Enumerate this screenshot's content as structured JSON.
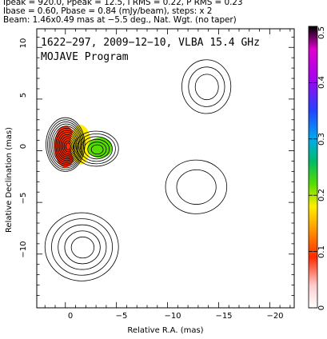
{
  "header": {
    "line1": "Ipeak = 920.0, Ppeak = 12.5, I RMS = 0.22, P RMS = 0.23",
    "line2": "Ibase = 0.60, Pbase = 0.84 (mJy/beam), steps: x 2",
    "line3": "Beam: 1.46x0.49 mas at −5.5 deg., Nat. Wgt. (no taper)"
  },
  "plot": {
    "caption1": "1622−297, 2009−12−10, VLBA 15.4 GHz",
    "caption2": "MOJAVE Program"
  },
  "chart_data": {
    "type": "heatmap",
    "xlabel": "Relative R.A. (mas)",
    "ylabel": "Relative Declination (mas)",
    "xlim": [
      2.8,
      -22.4
    ],
    "ylim": [
      -15.2,
      11.8
    ],
    "x_ticks": [
      0,
      -5,
      -10,
      -15,
      -20
    ],
    "x_tick_labels": [
      "0",
      "−5",
      "−10",
      "−15",
      "−20"
    ],
    "y_ticks": [
      10,
      5,
      0,
      -5,
      -10
    ],
    "y_tick_labels": [
      "10",
      "5",
      "0",
      "−5",
      "−10"
    ],
    "colorbar": {
      "range": [
        0,
        0.5
      ],
      "ticks": [
        0,
        0.1,
        0.2,
        0.3,
        0.4,
        0.5
      ],
      "tick_labels": [
        "0",
        "0.1",
        "0.2",
        "0.3",
        "0.4",
        "0.5"
      ]
    },
    "contour_components": [
      {
        "x": 0.0,
        "y": 0.6,
        "rx": 1.9,
        "ry": 2.6,
        "rings": 13
      },
      {
        "x": -3.0,
        "y": 0.2,
        "rx": 2.2,
        "ry": 1.7,
        "rings": 6
      },
      {
        "x": -1.6,
        "y": -9.3,
        "rx": 3.6,
        "ry": 3.3,
        "rings": 5
      },
      {
        "x": -13.8,
        "y": 6.2,
        "rx": 2.4,
        "ry": 2.6,
        "rings": 3
      },
      {
        "x": -12.8,
        "y": -3.5,
        "rx": 3.0,
        "ry": 2.6,
        "rings": 2
      }
    ],
    "polarization_patches": [
      {
        "x": 0.0,
        "y": 0.4,
        "rx": 1.1,
        "ry": 2.0,
        "level": 0.06
      },
      {
        "x": -1.5,
        "y": 0.6,
        "rx": 1.0,
        "ry": 1.9,
        "level": 0.15
      },
      {
        "x": -3.4,
        "y": 0.3,
        "rx": 1.2,
        "ry": 1.0,
        "level": 0.22
      }
    ]
  }
}
